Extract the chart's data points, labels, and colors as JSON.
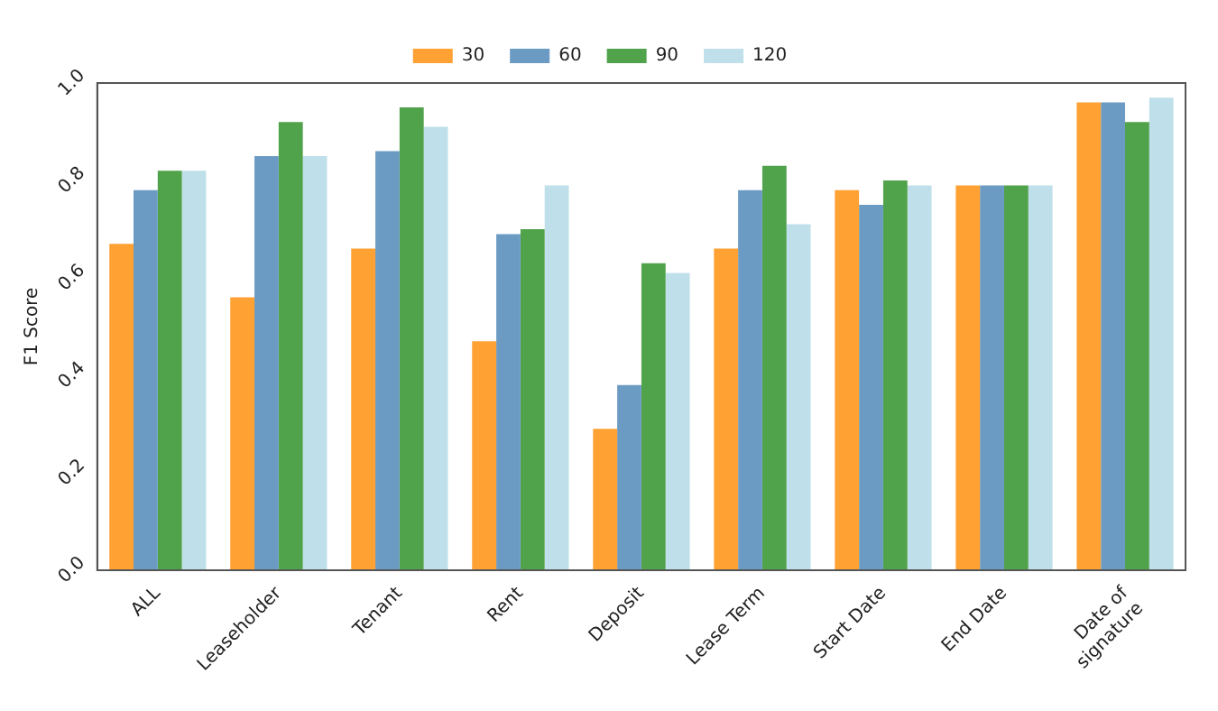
{
  "chart_data": {
    "type": "bar",
    "ylabel": "F1 Score",
    "categories": [
      "ALL",
      "Leaseholder",
      "Tenant",
      "Rent",
      "Deposit",
      "Lease Term",
      "Start Date",
      "End Date",
      "Date of signature"
    ],
    "series": [
      {
        "name": "30",
        "color": "#ffa133",
        "values": [
          0.67,
          0.56,
          0.66,
          0.47,
          0.29,
          0.66,
          0.78,
          0.79,
          0.96
        ]
      },
      {
        "name": "60",
        "color": "#6b9bc3",
        "values": [
          0.78,
          0.85,
          0.86,
          0.69,
          0.38,
          0.78,
          0.75,
          0.79,
          0.96
        ]
      },
      {
        "name": "90",
        "color": "#50a24b",
        "values": [
          0.82,
          0.92,
          0.95,
          0.7,
          0.63,
          0.83,
          0.8,
          0.79,
          0.92
        ]
      },
      {
        "name": "120",
        "color": "#bfe0ea",
        "values": [
          0.82,
          0.85,
          0.91,
          0.79,
          0.61,
          0.71,
          0.79,
          0.79,
          0.97
        ]
      }
    ],
    "ylim": [
      0,
      1.0
    ],
    "yticks": [
      {
        "value": 0,
        "label": "0.0"
      },
      0.2,
      0.4,
      0.6,
      0.8,
      {
        "value": 1,
        "label": "1.0"
      }
    ],
    "grid": false,
    "legend": "top"
  }
}
